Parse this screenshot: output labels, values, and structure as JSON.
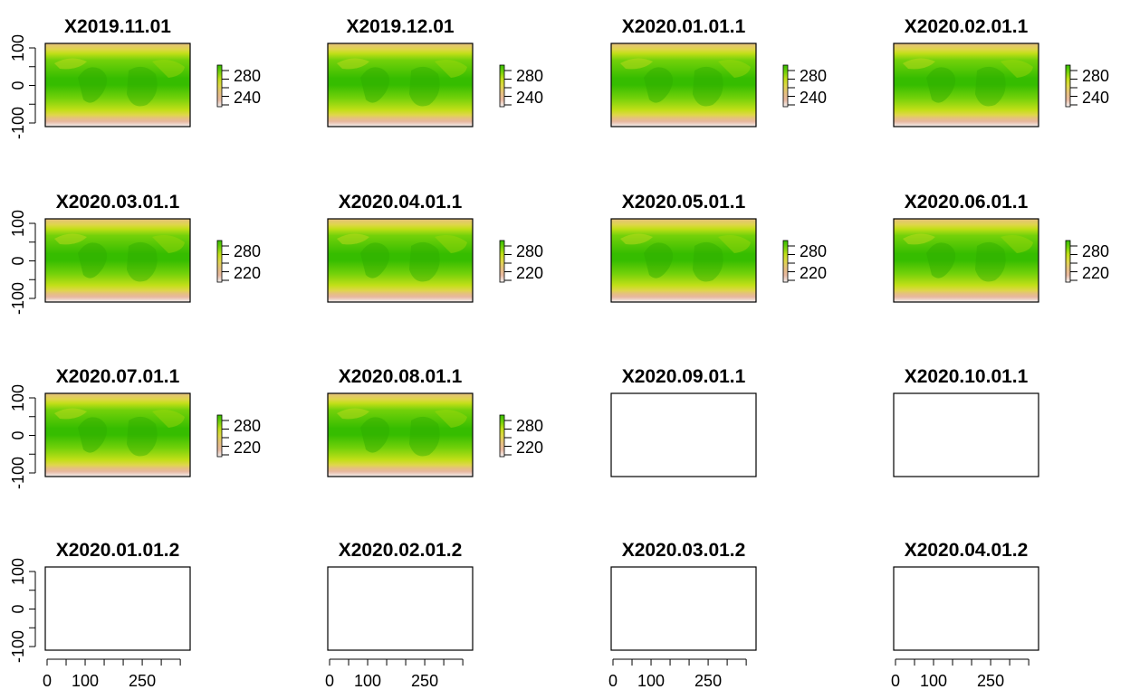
{
  "chart_data": {
    "type": "heatmap",
    "description_of_layout": "grid",
    "panels": [
      {
        "title": "X2019.11.01",
        "has_data": true,
        "legend_ticks": [
          "280",
          "240"
        ],
        "y_ticks": [
          "100",
          "0",
          "-100"
        ],
        "x_ticks": []
      },
      {
        "title": "X2019.12.01",
        "has_data": true,
        "legend_ticks": [
          "280",
          "240"
        ],
        "y_ticks": [],
        "x_ticks": []
      },
      {
        "title": "X2020.01.01.1",
        "has_data": true,
        "legend_ticks": [
          "280",
          "240"
        ],
        "y_ticks": [],
        "x_ticks": []
      },
      {
        "title": "X2020.02.01.1",
        "has_data": true,
        "legend_ticks": [
          "280",
          "240"
        ],
        "y_ticks": [],
        "x_ticks": []
      },
      {
        "title": "X2020.03.01.1",
        "has_data": true,
        "legend_ticks": [
          "280",
          "220"
        ],
        "y_ticks": [
          "100",
          "0",
          "-100"
        ],
        "x_ticks": []
      },
      {
        "title": "X2020.04.01.1",
        "has_data": true,
        "legend_ticks": [
          "280",
          "220"
        ],
        "y_ticks": [],
        "x_ticks": []
      },
      {
        "title": "X2020.05.01.1",
        "has_data": true,
        "legend_ticks": [
          "280",
          "220"
        ],
        "y_ticks": [],
        "x_ticks": []
      },
      {
        "title": "X2020.06.01.1",
        "has_data": true,
        "legend_ticks": [
          "280",
          "220"
        ],
        "y_ticks": [],
        "x_ticks": []
      },
      {
        "title": "X2020.07.01.1",
        "has_data": true,
        "legend_ticks": [
          "280",
          "220"
        ],
        "y_ticks": [
          "100",
          "0",
          "-100"
        ],
        "x_ticks": []
      },
      {
        "title": "X2020.08.01.1",
        "has_data": true,
        "legend_ticks": [
          "280",
          "220"
        ],
        "y_ticks": [],
        "x_ticks": []
      },
      {
        "title": "X2020.09.01.1",
        "has_data": false,
        "legend_ticks": [],
        "y_ticks": [],
        "x_ticks": []
      },
      {
        "title": "X2020.10.01.1",
        "has_data": false,
        "legend_ticks": [],
        "y_ticks": [],
        "x_ticks": []
      },
      {
        "title": "X2020.01.01.2",
        "has_data": false,
        "legend_ticks": [],
        "y_ticks": [
          "100",
          "0",
          "-100"
        ],
        "x_ticks": [
          "0",
          "100",
          "250"
        ]
      },
      {
        "title": "X2020.02.01.2",
        "has_data": false,
        "legend_ticks": [],
        "y_ticks": [],
        "x_ticks": [
          "0",
          "100",
          "250"
        ]
      },
      {
        "title": "X2020.03.01.2",
        "has_data": false,
        "legend_ticks": [],
        "y_ticks": [],
        "x_ticks": [
          "0",
          "100",
          "250"
        ]
      },
      {
        "title": "X2020.04.01.2",
        "has_data": false,
        "legend_ticks": [],
        "y_ticks": [],
        "x_ticks": [
          "0",
          "100",
          "250"
        ]
      }
    ],
    "x_range": [
      0,
      360
    ],
    "y_range": [
      -100,
      100
    ],
    "colormap": [
      "#f2f2f2",
      "#e8b8a0",
      "#e5c07e",
      "#dfd64a",
      "#c2df18",
      "#74d10a",
      "#36bd00"
    ]
  }
}
